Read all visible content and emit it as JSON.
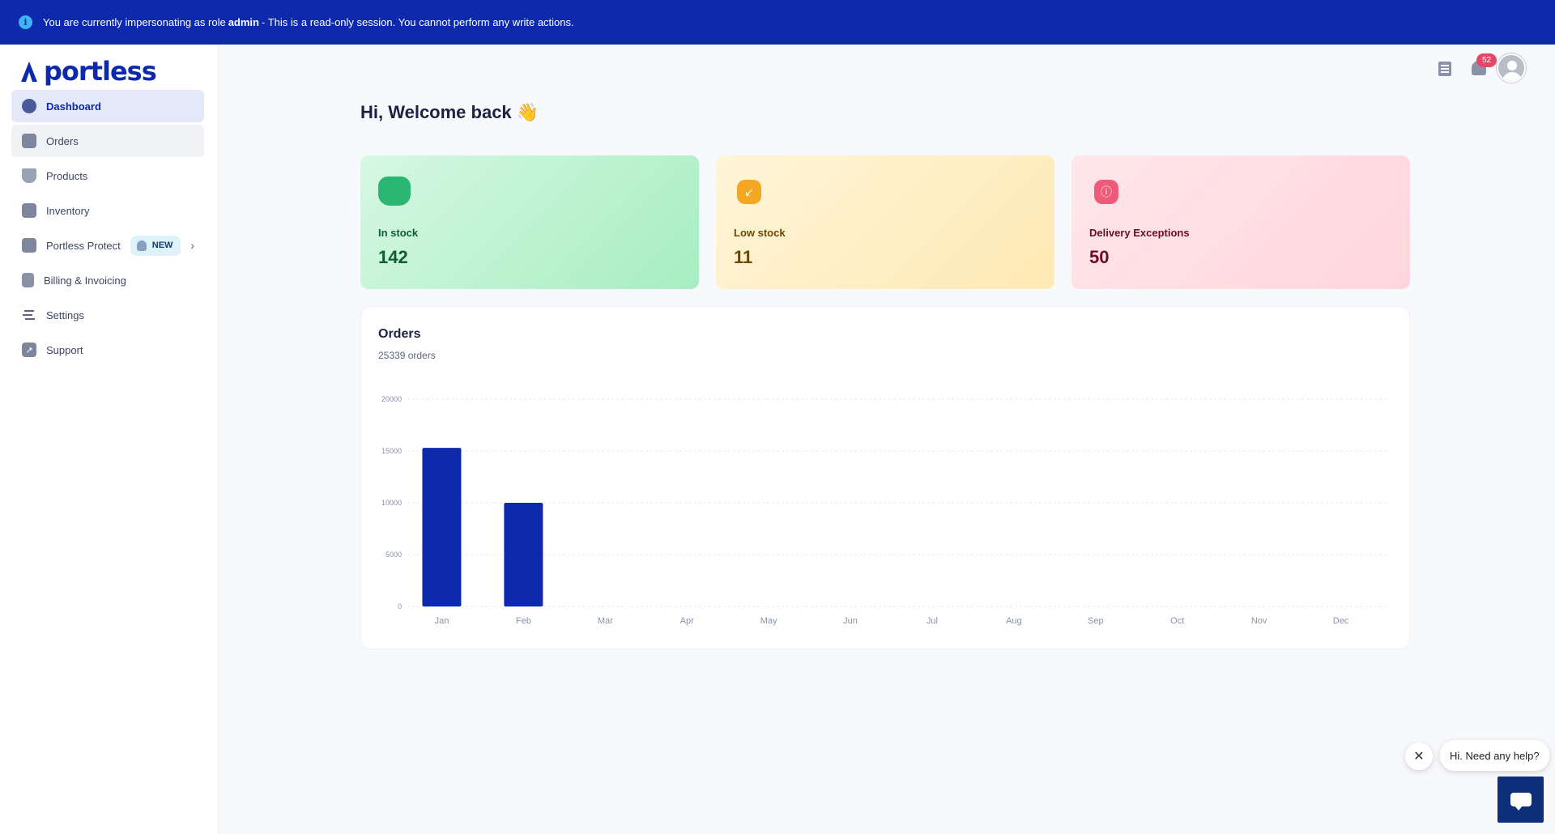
{
  "banner": {
    "prefix": "You are currently impersonating as role ",
    "role": "admin",
    "suffix": " - This is a read-only session. You cannot perform any write actions.",
    "color": "#0c2aab"
  },
  "brand": {
    "name": "portless",
    "color": "#0c2aab"
  },
  "sidebar": {
    "items": [
      {
        "label": "Dashboard",
        "icon": "dashboard-icon",
        "active": true
      },
      {
        "label": "Orders",
        "icon": "cart-icon"
      },
      {
        "label": "Products",
        "icon": "hanger-icon"
      },
      {
        "label": "Inventory",
        "icon": "box-icon"
      },
      {
        "label": "Portless Protect",
        "icon": "lock-icon",
        "badge": "NEW"
      },
      {
        "label": "Billing & Invoicing",
        "icon": "invoice-icon"
      },
      {
        "label": "Settings",
        "icon": "settings-icon"
      },
      {
        "label": "Support",
        "icon": "support-icon"
      }
    ]
  },
  "header": {
    "notification_count": "52"
  },
  "main": {
    "greeting": "Hi, Welcome back 👋",
    "cards": [
      {
        "label": "In stock",
        "value": "142",
        "icon": "bag-icon"
      },
      {
        "label": "Low stock",
        "value": "11",
        "icon": "arrow-down-left-icon"
      },
      {
        "label": "Delivery Exceptions",
        "value": "50",
        "icon": "alert-icon"
      }
    ],
    "orders": {
      "title": "Orders",
      "subtitle": "25339 orders"
    }
  },
  "chart_data": {
    "type": "bar",
    "categories": [
      "Jan",
      "Feb",
      "Mar",
      "Apr",
      "May",
      "Jun",
      "Jul",
      "Aug",
      "Sep",
      "Oct",
      "Nov",
      "Dec"
    ],
    "values": [
      15300,
      10000,
      0,
      0,
      0,
      0,
      0,
      0,
      0,
      0,
      0,
      0
    ],
    "yticks": [
      "0",
      "5000",
      "10000",
      "15000",
      "20000"
    ],
    "ylim": [
      0,
      20000
    ],
    "grid": true,
    "bar_color": "#0c2aab"
  },
  "help": {
    "bubble": "Hi. Need any help?"
  }
}
